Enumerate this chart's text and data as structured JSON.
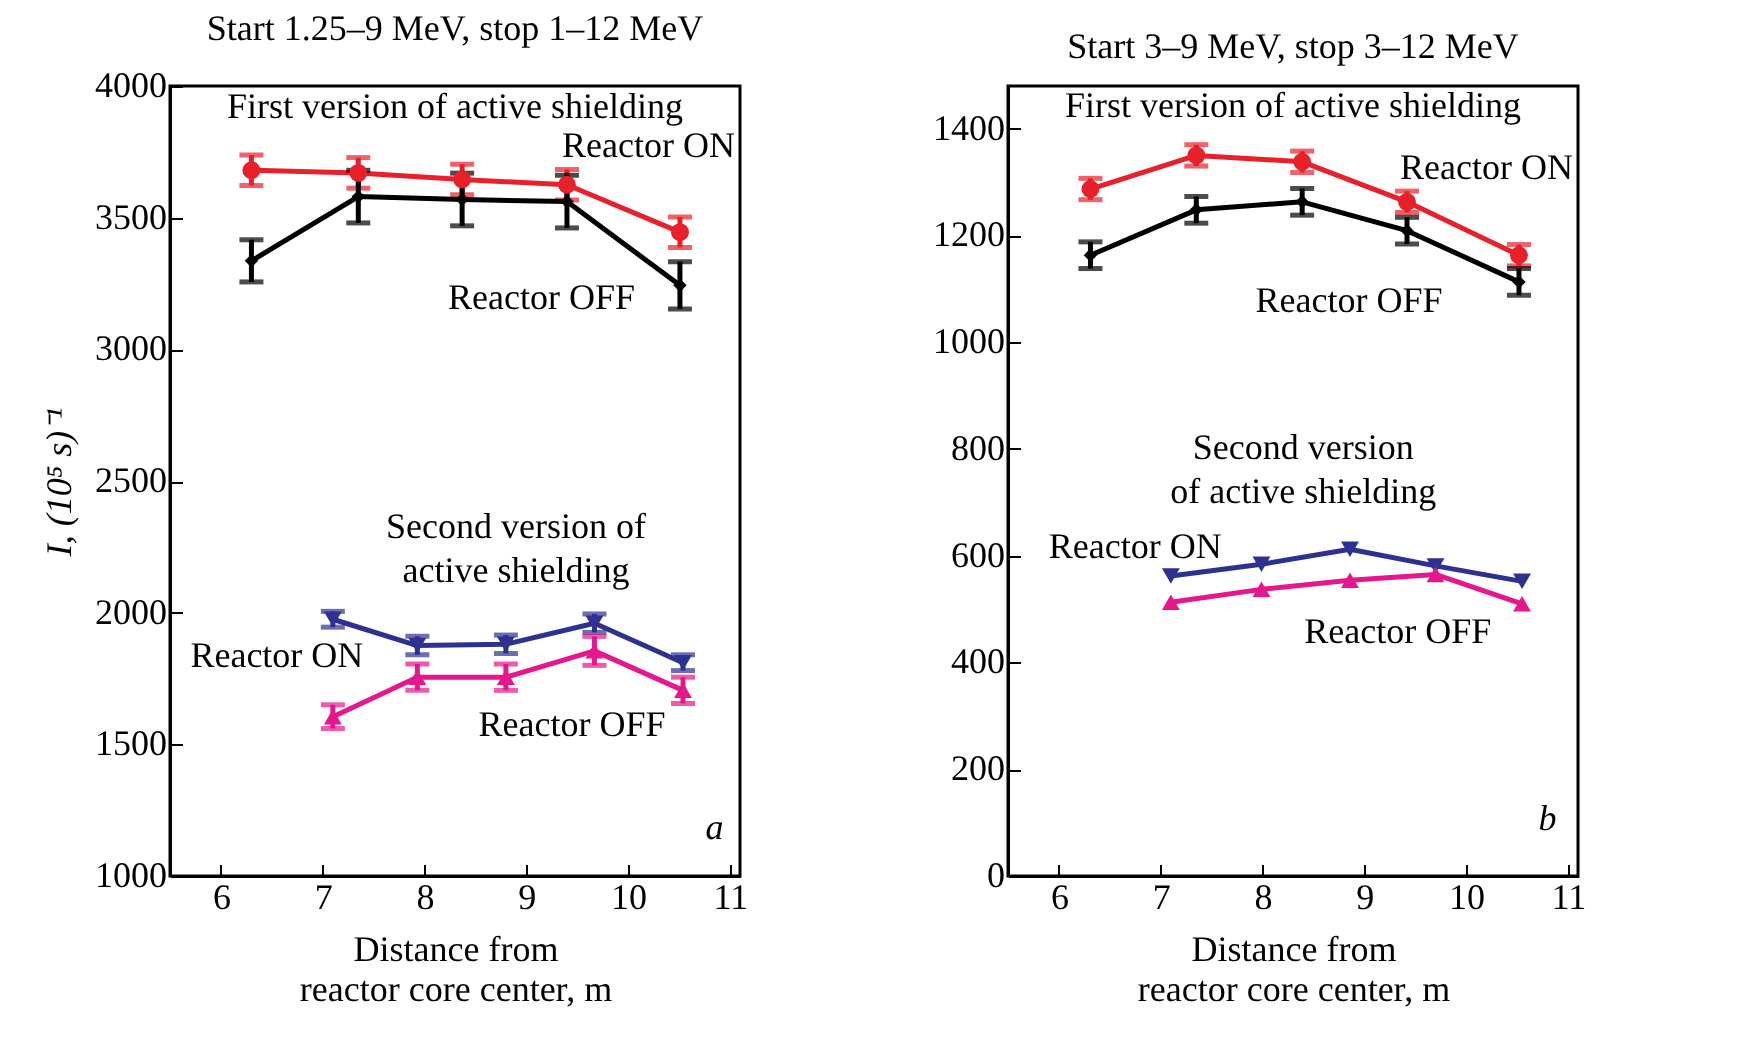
{
  "chart_data": [
    {
      "type": "line",
      "title": "Start 1.25–9 MeV, stop 1–12 MeV",
      "xlabel": "Distance from\nreactor core center, m",
      "ylabel": "I, (10⁵ s)⁻¹",
      "xlim": [
        5.5,
        11.1
      ],
      "xticks": [
        6,
        7,
        8,
        9,
        10,
        11
      ],
      "ylim": [
        1000,
        4000
      ],
      "yticks": [
        1000,
        1500,
        2000,
        2500,
        3000,
        3500,
        4000
      ],
      "grid": false,
      "annotations": [
        "First version of active shielding",
        "Second version of\nactive shielding",
        "a"
      ],
      "series": [
        {
          "name": "Reactor ON",
          "color": "#e8202a",
          "marker": "circle",
          "x": [
            6.3,
            7.35,
            8.37,
            9.4,
            10.51
          ],
          "values": [
            3680,
            3670,
            3645,
            3625,
            3445
          ],
          "errors": [
            58,
            58,
            58,
            58,
            58
          ]
        },
        {
          "name": "Reactor OFF",
          "color": "#000000",
          "marker": "diamond",
          "x": [
            6.3,
            7.35,
            8.37,
            9.4,
            10.51
          ],
          "values": [
            3336,
            3580,
            3569,
            3561,
            3243
          ],
          "errors": [
            80,
            100,
            100,
            100,
            90
          ]
        },
        {
          "name": "Reactor ON",
          "color": "#2e3192",
          "marker": "triangle-down",
          "x": [
            7.1,
            7.93,
            8.8,
            9.67,
            10.54
          ],
          "values": [
            1975,
            1875,
            1880,
            1960,
            1810
          ],
          "errors": [
            30,
            35,
            35,
            35,
            30
          ]
        },
        {
          "name": "Reactor OFF",
          "color": "#e6168c",
          "marker": "triangle-up",
          "x": [
            7.1,
            7.93,
            8.8,
            9.67,
            10.54
          ],
          "values": [
            1605,
            1755,
            1755,
            1855,
            1705
          ],
          "errors": [
            45,
            50,
            50,
            55,
            50
          ]
        }
      ]
    },
    {
      "type": "line",
      "title": "Start 3–9 MeV, stop 3–12 MeV",
      "xlabel": "Distance from\nreactor core center, m",
      "xlim": [
        5.5,
        11.1
      ],
      "xticks": [
        6,
        7,
        8,
        9,
        10,
        11
      ],
      "ylim": [
        0,
        1480
      ],
      "yticks": [
        0,
        200,
        400,
        600,
        800,
        1000,
        1200,
        1400
      ],
      "grid": false,
      "annotations": [
        "First version of active shielding",
        "Second version\nof active shielding",
        "b"
      ],
      "series": [
        {
          "name": "Reactor ON",
          "color": "#e8202a",
          "marker": "circle",
          "x": [
            6.31,
            7.35,
            8.39,
            9.42,
            10.52
          ],
          "values": [
            1287,
            1350,
            1338,
            1263,
            1163
          ],
          "errors": [
            20,
            20,
            20,
            20,
            20
          ]
        },
        {
          "name": "Reactor OFF",
          "color": "#000000",
          "marker": "diamond",
          "x": [
            6.31,
            7.35,
            8.39,
            9.42,
            10.52
          ],
          "values": [
            1163,
            1248,
            1263,
            1209,
            1113
          ],
          "errors": [
            25,
            25,
            25,
            25,
            25
          ]
        },
        {
          "name": "Reactor ON",
          "color": "#2e3192",
          "marker": "triangle-down",
          "x": [
            7.1,
            7.99,
            8.86,
            9.7,
            10.55
          ],
          "values": [
            562,
            584,
            612,
            581,
            552
          ]
        },
        {
          "name": "Reactor OFF",
          "color": "#e6168c",
          "marker": "triangle-up",
          "x": [
            7.1,
            7.99,
            8.86,
            9.7,
            10.55
          ],
          "values": [
            513,
            537,
            554,
            565,
            510
          ]
        }
      ]
    }
  ]
}
